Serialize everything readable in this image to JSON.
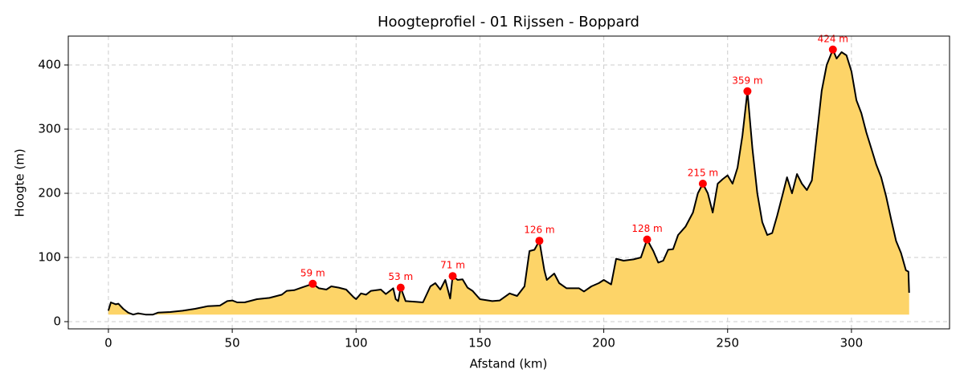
{
  "chart_data": {
    "type": "area-line",
    "title": "Hoogteprofiel - 01 Rijssen - Boppard",
    "x_label": "Afstand (km)",
    "y_label": "Hoogte (m)",
    "x": [
      0,
      1,
      3,
      4,
      6,
      8,
      10,
      12,
      15,
      18,
      20,
      25,
      30,
      35,
      40,
      45,
      48,
      50,
      52,
      55,
      60,
      65,
      70,
      72,
      75,
      78,
      82.5,
      85,
      88,
      90,
      93,
      96,
      99,
      100,
      102,
      104,
      106,
      110,
      112,
      115,
      116,
      117,
      118,
      120,
      124,
      127,
      130,
      132,
      134,
      136,
      138,
      139,
      141,
      143,
      145,
      147,
      150,
      155,
      158,
      162,
      165,
      168,
      170,
      172,
      174,
      176,
      177,
      180,
      182,
      185,
      190,
      192,
      195,
      198,
      200,
      203,
      205,
      208,
      212,
      215,
      217.5,
      220,
      222,
      224,
      226,
      228,
      230,
      233,
      236,
      238,
      240,
      242,
      244,
      246,
      248,
      250,
      252,
      254,
      256,
      258,
      260,
      262,
      264,
      266,
      268,
      270,
      272,
      274,
      276,
      278,
      280,
      282,
      284,
      286,
      288,
      290,
      292.5,
      294,
      296,
      298,
      300,
      302,
      304,
      306,
      308,
      310,
      312,
      314,
      316,
      318,
      320,
      322,
      323,
      323.3
    ],
    "values": [
      17,
      30,
      27,
      28,
      20,
      14,
      11,
      13,
      11,
      11,
      14,
      15,
      17,
      20,
      24,
      25,
      32,
      33,
      30,
      30,
      35,
      37,
      42,
      48,
      49,
      53,
      59,
      52,
      50,
      55,
      53,
      50,
      38,
      35,
      44,
      42,
      48,
      50,
      43,
      52,
      35,
      32,
      53,
      32,
      31,
      30,
      55,
      60,
      50,
      65,
      36,
      71,
      65,
      66,
      53,
      48,
      35,
      32,
      33,
      44,
      40,
      55,
      110,
      112,
      126,
      80,
      65,
      75,
      60,
      52,
      52,
      47,
      55,
      60,
      65,
      58,
      98,
      95,
      97,
      100,
      128,
      110,
      92,
      95,
      112,
      113,
      135,
      148,
      170,
      200,
      215,
      200,
      170,
      215,
      222,
      228,
      215,
      240,
      290,
      359,
      270,
      200,
      155,
      135,
      138,
      165,
      195,
      225,
      200,
      230,
      215,
      205,
      220,
      290,
      360,
      400,
      424,
      410,
      420,
      415,
      390,
      345,
      325,
      295,
      270,
      245,
      225,
      195,
      160,
      126,
      107,
      80,
      78,
      45
    ],
    "color": "#fdd468",
    "line_color": "#000000",
    "peaks": {
      "x": [
        82.5,
        118,
        139,
        174,
        217.5,
        240,
        258,
        292.5
      ],
      "values": [
        59,
        53,
        71,
        126,
        128,
        215,
        359,
        424
      ],
      "value_labels": [
        "59 m",
        "53 m",
        "71 m",
        "126 m",
        "128 m",
        "215 m",
        "359 m",
        "424 m"
      ],
      "color": "#ff0000"
    },
    "xlim": [
      -16.2,
      339.6
    ],
    "ylim": [
      -11.25,
      445
    ],
    "xticks": [
      0,
      50,
      100,
      150,
      200,
      250,
      300
    ],
    "yticks": [
      0,
      100,
      200,
      300,
      400
    ],
    "grid": true
  }
}
